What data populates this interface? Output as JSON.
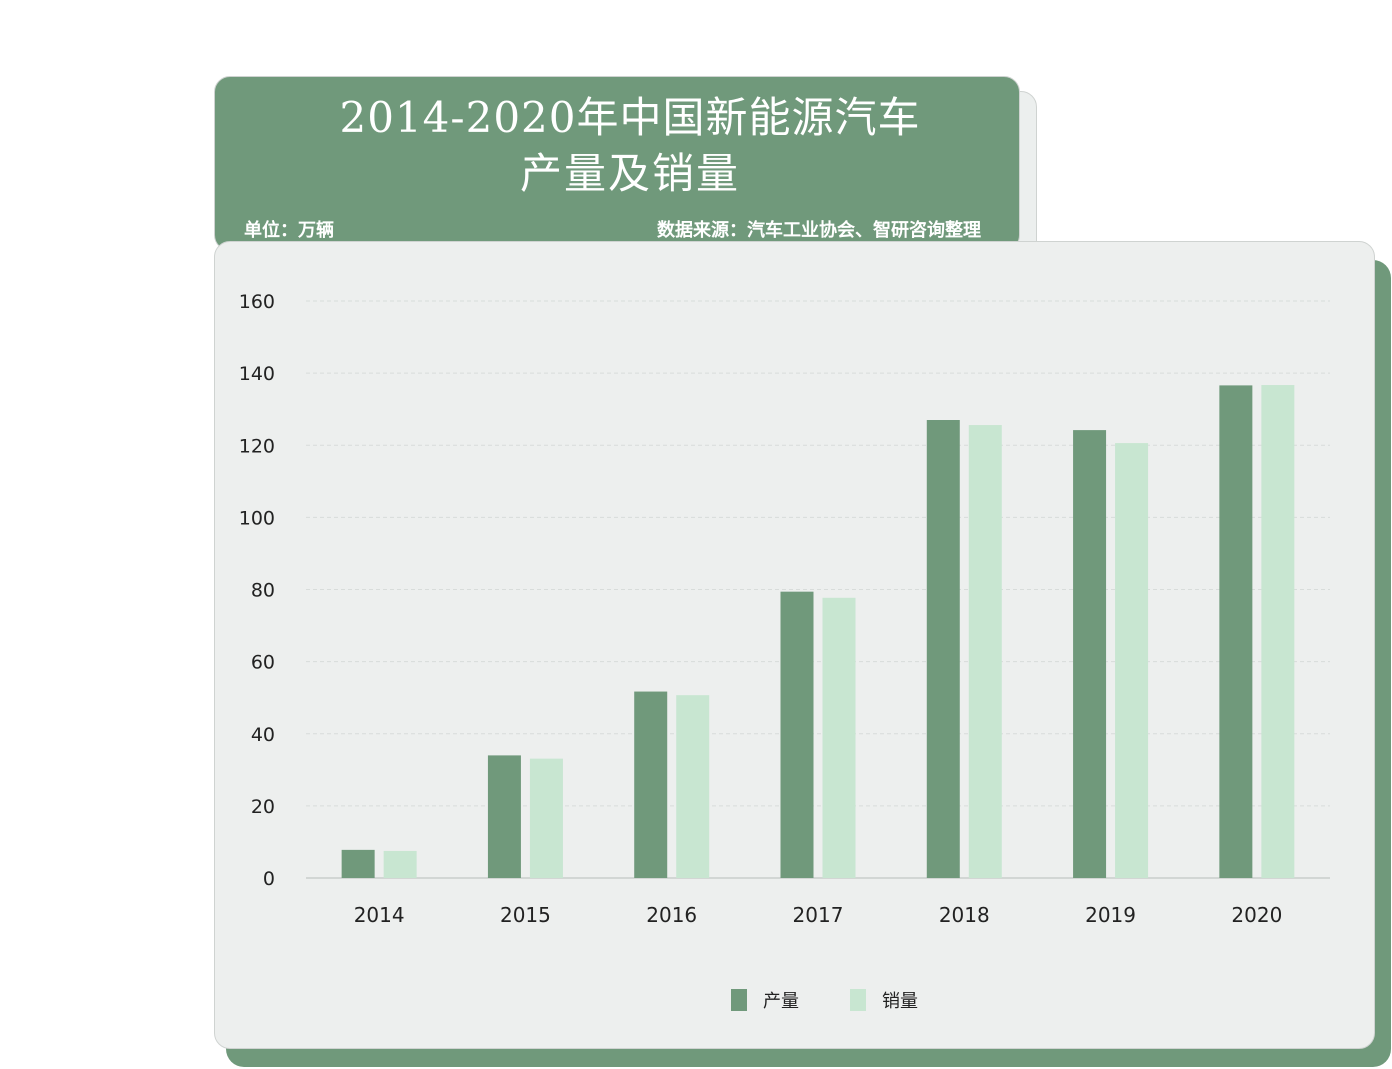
{
  "header": {
    "title": "2014-2020年中国新能源汽车",
    "subtitle": "产量及销量",
    "unit": "单位：万辆",
    "source": "数据来源：汽车工业协会、智研咨询整理"
  },
  "colors": {
    "production": "#70997b",
    "sales": "#c8e6d1",
    "background": "#edefee",
    "grid": "#d8dcda",
    "header": "#70997b"
  },
  "legend": {
    "production": "产量",
    "sales": "销量"
  },
  "chart_data": {
    "type": "bar",
    "categories": [
      "2014",
      "2015",
      "2016",
      "2017",
      "2018",
      "2019",
      "2020"
    ],
    "series": [
      {
        "name": "产量",
        "values": [
          7.8,
          34.0,
          51.7,
          79.4,
          127.0,
          124.2,
          136.6
        ]
      },
      {
        "name": "销量",
        "values": [
          7.5,
          33.1,
          50.7,
          77.7,
          125.6,
          120.6,
          136.7
        ]
      }
    ],
    "yticks": [
      "0",
      "20",
      "40",
      "60",
      "80",
      "100",
      "120",
      "140",
      "160"
    ],
    "ylim": [
      0,
      160
    ],
    "grid": true,
    "legend_position": "bottom-center"
  }
}
